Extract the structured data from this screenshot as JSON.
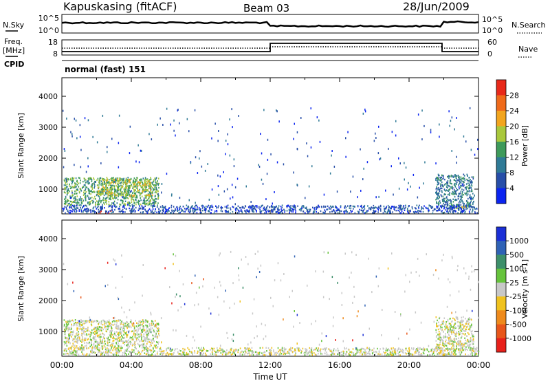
{
  "header": {
    "station": "Kapuskasing (fitACF)",
    "beam": "Beam 03",
    "date": "28/Jun/2009"
  },
  "top_panels": {
    "nsky_label": "N.Sky",
    "nsky_ticks": [
      "10^5",
      "10^0"
    ],
    "nsearch_label": "N.Search",
    "nsearch_ticks": [
      "10^5",
      "10^0"
    ],
    "freq_label": "Freq.",
    "freq_unit": "[MHz]",
    "freq_ticks": [
      "18",
      "8"
    ],
    "nave_label": "Nave",
    "nave_ticks": [
      "60",
      "0"
    ],
    "cpid_label": "CPID",
    "cpid_value": "normal (fast) 151"
  },
  "chart_data": [
    {
      "type": "heatmap",
      "title": "",
      "ylabel": "Slant Range [km]",
      "xlabel": "",
      "x_range_hours": [
        0,
        24
      ],
      "ylim": [
        200,
        4600
      ],
      "y_ticks": [
        "1000",
        "2000",
        "3000",
        "4000"
      ],
      "colorbar": {
        "label": "Power [dB]",
        "ticks": [
          "4",
          "8",
          "12",
          "16",
          "20",
          "24",
          "28"
        ],
        "colors": [
          "#0b24f0",
          "#274ea8",
          "#2f7a96",
          "#3e9a5a",
          "#a9c83c",
          "#f2a51e",
          "#ef6a1a",
          "#e8291a"
        ]
      },
      "regions": [
        {
          "t0": 0.1,
          "t1": 5.6,
          "r0": 500,
          "r1": 1400,
          "color_index": 3
        },
        {
          "t0": 2.0,
          "t1": 5.2,
          "r0": 800,
          "r1": 1350,
          "color_index": 4
        },
        {
          "t0": 2.0,
          "t1": 2.8,
          "r0": 250,
          "r1": 330,
          "color_index": 7
        },
        {
          "t0": 21.5,
          "t1": 23.7,
          "r0": 400,
          "r1": 1500,
          "color_index": 2
        },
        {
          "t0": 22.3,
          "t1": 23.5,
          "r0": 400,
          "r1": 500,
          "color_index": 4
        },
        {
          "t0": 0.0,
          "t1": 24.0,
          "r0": 250,
          "r1": 500,
          "color_index": 1
        }
      ]
    },
    {
      "type": "heatmap",
      "title": "",
      "ylabel": "Slant Range [km]",
      "xlabel": "Time UT",
      "x_range_hours": [
        0,
        24
      ],
      "x_ticks": [
        "00:00",
        "04:00",
        "08:00",
        "12:00",
        "16:00",
        "20:00",
        "00:00"
      ],
      "ylim": [
        200,
        4600
      ],
      "y_ticks": [
        "1000",
        "2000",
        "3000",
        "4000"
      ],
      "colorbar": {
        "label": "Velocity [m s-1]",
        "ticks": [
          "1000",
          "500",
          "100",
          "25",
          "-25",
          "-100",
          "-500",
          "-1000"
        ],
        "colors": [
          "#1b2fd6",
          "#2f62b5",
          "#3d8f6a",
          "#66c33c",
          "#c8c8c8",
          "#f0c21e",
          "#ee8a1c",
          "#e8561a",
          "#e8201a"
        ]
      },
      "regions": [
        {
          "t0": 0.1,
          "t1": 5.6,
          "r0": 500,
          "r1": 1400,
          "color_index": 4
        },
        {
          "t0": 21.5,
          "t1": 23.7,
          "r0": 400,
          "r1": 1500,
          "color_index": 4
        },
        {
          "t0": 0.0,
          "t1": 24.0,
          "r0": 250,
          "r1": 500,
          "color_index": 4
        }
      ]
    }
  ]
}
